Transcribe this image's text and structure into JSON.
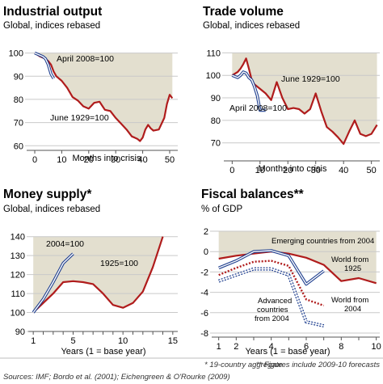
{
  "colors": {
    "background": "#ffffff",
    "shade": "#e3dfcf",
    "red": "#b01c1c",
    "blue": "#1f3f8f",
    "grid": "#c9c9c9",
    "text": "#000000",
    "muted": "#333333"
  },
  "footnotes": {
    "aggregate": "* 19-country aggregate",
    "forecasts": "** Figures include 2009-10 forecasts"
  },
  "sources": "Sources: IMF; Bordo et al. (2001); Eichengreen & O'Rourke (2009)",
  "chart_data": [
    {
      "id": "industrial",
      "type": "line",
      "title": "Industrial output",
      "subtitle": "Global, indices rebased",
      "xlabel": "Months into crisis",
      "xlim": [
        -3,
        53
      ],
      "ylim": [
        58,
        103
      ],
      "xticks": [
        0,
        10,
        20,
        30,
        40,
        50
      ],
      "yticks": [
        60,
        70,
        80,
        90,
        100
      ],
      "shade_under_series": "june1929",
      "series": [
        {
          "key": "june1929",
          "name": "June 1929=100",
          "style": "red",
          "x": [
            0,
            2,
            4,
            5,
            6,
            7,
            8,
            10,
            12,
            14,
            16,
            18,
            20,
            22,
            24,
            26,
            28,
            30,
            32,
            34,
            36,
            37,
            38,
            39,
            40,
            41,
            42,
            43,
            44,
            46,
            48,
            49,
            50,
            51
          ],
          "y": [
            100,
            98.5,
            97.5,
            96.5,
            95,
            92,
            90,
            88,
            85,
            81,
            79.5,
            77,
            76,
            78.5,
            79,
            75.5,
            75,
            72,
            69.5,
            67,
            64,
            63.5,
            63,
            62,
            63.5,
            67,
            69,
            67.5,
            66.5,
            67,
            72,
            78,
            82,
            80.5
          ]
        },
        {
          "key": "april2008",
          "name": "April 2008=100",
          "style": "blue",
          "x": [
            0,
            1,
            2,
            3,
            4,
            5,
            6,
            7
          ],
          "y": [
            100,
            99.5,
            99,
            98.5,
            97.5,
            95,
            91,
            89
          ]
        }
      ]
    },
    {
      "id": "trade",
      "type": "line",
      "title": "Trade volume",
      "subtitle": "Global, indices rebased",
      "xlabel": "Months into crisis",
      "xlim": [
        -3,
        53
      ],
      "ylim": [
        62,
        113
      ],
      "xticks": [
        0,
        10,
        20,
        30,
        40,
        50
      ],
      "yticks": [
        70,
        80,
        90,
        100,
        110
      ],
      "shade_under_series": "june1929",
      "series": [
        {
          "key": "june1929",
          "name": "June 1929=100",
          "style": "red",
          "x": [
            0,
            2,
            3,
            4,
            5,
            6,
            7,
            8,
            10,
            12,
            14,
            16,
            18,
            20,
            22,
            24,
            26,
            28,
            30,
            32,
            34,
            36,
            38,
            40,
            42,
            44,
            46,
            48,
            50,
            52
          ],
          "y": [
            100,
            101.5,
            103,
            105,
            107.5,
            103,
            98,
            96,
            94,
            92,
            89,
            97,
            90,
            85,
            85.5,
            85,
            83,
            85,
            92,
            84,
            77,
            75,
            72.5,
            69.5,
            75,
            80,
            74,
            73,
            74,
            78
          ]
        },
        {
          "key": "april2008",
          "name": "April 2008=100",
          "style": "blue",
          "x": [
            0,
            2,
            3,
            4,
            5,
            6,
            7,
            8,
            9,
            10,
            11,
            12
          ],
          "y": [
            100,
            99,
            100,
            101.5,
            101,
            99,
            98,
            95,
            91,
            84.5,
            84.5,
            84.5
          ]
        }
      ]
    },
    {
      "id": "money",
      "type": "line",
      "title": "Money supply*",
      "subtitle": "Global, indices rebased",
      "xlabel": "Years (1 = base year)",
      "xlim": [
        0.5,
        15.5
      ],
      "ylim": [
        90,
        145
      ],
      "xticks": [
        1,
        5,
        10,
        15
      ],
      "xtick_marks": [
        1,
        2,
        3,
        4,
        5,
        6,
        7,
        8,
        9,
        10,
        11,
        12,
        13,
        14,
        15
      ],
      "yticks": [
        90,
        100,
        110,
        120,
        130,
        140
      ],
      "shade_under_series": "y1925",
      "series": [
        {
          "key": "y1925",
          "name": "1925=100",
          "style": "red",
          "x": [
            1,
            2,
            3,
            4,
            5,
            6,
            7,
            8,
            9,
            10,
            11,
            12,
            13,
            14
          ],
          "y": [
            100,
            105,
            110,
            116,
            116.5,
            116,
            115,
            110,
            104,
            102.5,
            105,
            111,
            124,
            140
          ]
        },
        {
          "key": "y2004",
          "name": "2004=100",
          "style": "blue",
          "x": [
            1,
            2,
            3,
            4,
            5
          ],
          "y": [
            100,
            107,
            116,
            126,
            131
          ]
        }
      ]
    },
    {
      "id": "fiscal",
      "type": "line",
      "title": "Fiscal balances**",
      "subtitle": "% of GDP",
      "xlabel": "Years (1 = base year)",
      "xlim": [
        0.6,
        10.2
      ],
      "ylim": [
        -8.4,
        2.4
      ],
      "xticks": [
        1,
        2,
        4,
        6,
        8,
        10
      ],
      "xtick_marks": [
        1,
        2,
        3,
        4,
        5,
        6,
        7,
        8,
        9,
        10
      ],
      "yticks": [
        -8,
        -6,
        -4,
        -2,
        0,
        2
      ],
      "shade_under_series": "world1925",
      "series": [
        {
          "key": "world1925",
          "name": "World from 1925",
          "style": "red",
          "x": [
            1,
            2,
            3,
            4,
            5,
            6,
            7,
            8,
            9,
            10
          ],
          "y": [
            -0.7,
            -0.4,
            -0.2,
            0,
            -0.2,
            -0.6,
            -1.3,
            -2.9,
            -2.6,
            -3.1
          ]
        },
        {
          "key": "emerging2004",
          "name": "Emerging countries from 2004",
          "style": "blue",
          "x": [
            1,
            2,
            3,
            4,
            5,
            6,
            7
          ],
          "y": [
            -1.6,
            -0.9,
            0,
            0.1,
            -0.4,
            -3.2,
            -1.9
          ]
        },
        {
          "key": "world2004",
          "name": "World from 2004",
          "style": "red-dotted",
          "x": [
            1,
            2,
            3,
            4,
            5,
            6,
            7
          ],
          "y": [
            -2.3,
            -1.6,
            -1.0,
            -0.9,
            -1.4,
            -4.7,
            -5.3
          ]
        },
        {
          "key": "advanced2004",
          "name": "Advanced countries from 2004",
          "style": "blue-dotted",
          "x": [
            1,
            2,
            3,
            4,
            5,
            6,
            7
          ],
          "y": [
            -2.9,
            -2.3,
            -1.7,
            -1.7,
            -2.3,
            -6.9,
            -7.3
          ]
        }
      ]
    }
  ],
  "annotations": {
    "industrial": {
      "april2008": "April 2008=100",
      "june1929": "June 1929=100"
    },
    "trade": {
      "june1929": "June 1929=100",
      "april2008": "April 2008=100"
    },
    "money": {
      "y2004": "2004=100",
      "y1925": "1925=100"
    },
    "fiscal": {
      "emerging": "Emerging countries from 2004",
      "world1925_line1": "World from",
      "world1925_line2": "1925",
      "world2004_line1": "World from",
      "world2004_line2": "2004",
      "advanced_line1": "Advanced",
      "advanced_line2": "countries",
      "advanced_line3": "from 2004"
    }
  }
}
